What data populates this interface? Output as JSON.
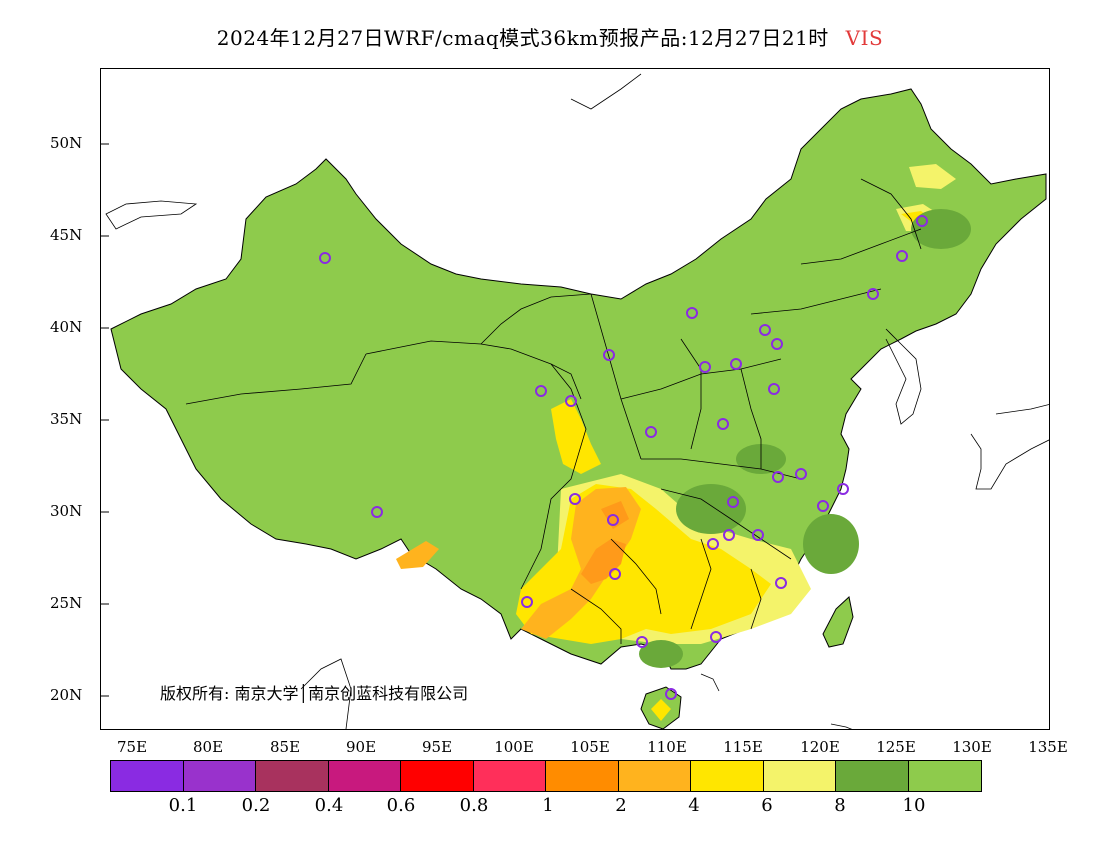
{
  "title": {
    "main": "2024年12月27日WRF/cmaq模式36km预报产品:12月27日21时",
    "variable": "VIS"
  },
  "map": {
    "lat_ticks": [
      "50N",
      "45N",
      "40N",
      "35N",
      "30N",
      "25N",
      "20N"
    ],
    "lon_ticks": [
      "75E",
      "80E",
      "85E",
      "90E",
      "95E",
      "100E",
      "105E",
      "110E",
      "115E",
      "120E",
      "125E",
      "130E",
      "135E"
    ],
    "copyright": "版权所有: 南京大学│南京创蓝科技有限公司",
    "land_color": "#8ecb4c",
    "dark_green": "#6aa93a",
    "yellow": "#ffee00",
    "light_yellow": "#f4f36a",
    "orange_light": "#ffb31e",
    "orange": "#ff9a1a"
  },
  "colorbar": {
    "colors": [
      "#8a2be2",
      "#9932cc",
      "#a8325e",
      "#c8197e",
      "#ff0000",
      "#ff2f5a",
      "#ff8c00",
      "#ffb31e",
      "#ffe600",
      "#f4f36a",
      "#6aa93a",
      "#8ecb4c"
    ],
    "labels": [
      "0.1",
      "0.2",
      "0.4",
      "0.6",
      "0.8",
      "1",
      "2",
      "4",
      "6",
      "8",
      "10"
    ]
  }
}
